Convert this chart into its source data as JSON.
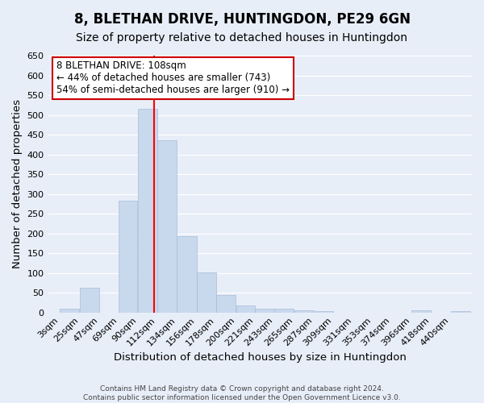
{
  "title1": "8, BLETHAN DRIVE, HUNTINGDON, PE29 6GN",
  "title2": "Size of property relative to detached houses in Huntingdon",
  "xlabel": "Distribution of detached houses by size in Huntingdon",
  "ylabel": "Number of detached properties",
  "footer1": "Contains HM Land Registry data © Crown copyright and database right 2024.",
  "footer2": "Contains public sector information licensed under the Open Government Licence v3.0.",
  "bin_labels": [
    "3sqm",
    "25sqm",
    "47sqm",
    "69sqm",
    "90sqm",
    "112sqm",
    "134sqm",
    "156sqm",
    "178sqm",
    "200sqm",
    "221sqm",
    "243sqm",
    "265sqm",
    "287sqm",
    "309sqm",
    "331sqm",
    "353sqm",
    "374sqm",
    "396sqm",
    "418sqm",
    "440sqm"
  ],
  "bar_values": [
    10,
    63,
    0,
    282,
    515,
    435,
    193,
    102,
    45,
    18,
    10,
    10,
    5,
    3,
    0,
    0,
    0,
    0,
    5,
    0,
    3
  ],
  "bar_color": "#c8d8ed",
  "bar_edgecolor": "#a8bcd8",
  "ylim_max": 650,
  "yticks": [
    0,
    50,
    100,
    150,
    200,
    250,
    300,
    350,
    400,
    450,
    500,
    550,
    600,
    650
  ],
  "red_line_x": 108,
  "bin_edges": [
    3,
    25,
    47,
    69,
    90,
    112,
    134,
    156,
    178,
    200,
    221,
    243,
    265,
    287,
    309,
    331,
    353,
    374,
    396,
    418,
    440,
    462
  ],
  "annotation_title": "8 BLETHAN DRIVE: 108sqm",
  "annotation_line1": "← 44% of detached houses are smaller (743)",
  "annotation_line2": "54% of semi-detached houses are larger (910) →",
  "annotation_box_color": "#ffffff",
  "annotation_border_color": "#cc0000",
  "bg_color": "#e8eef8",
  "grid_color": "#ffffff",
  "title1_fontsize": 12,
  "title2_fontsize": 10,
  "axis_label_fontsize": 9.5,
  "tick_fontsize": 8,
  "annotation_fontsize": 8.5,
  "footer_fontsize": 6.5
}
